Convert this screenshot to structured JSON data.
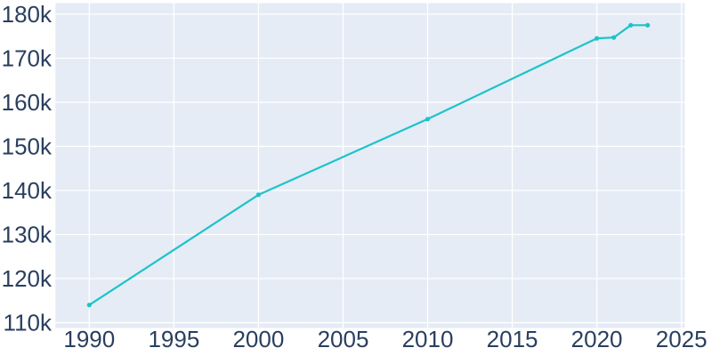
{
  "chart_data": {
    "type": "line",
    "title": "",
    "xlabel": "",
    "ylabel": "",
    "x": [
      1990,
      2000,
      2010,
      2020,
      2021,
      2022,
      2023
    ],
    "y": [
      114000,
      139000,
      156200,
      174500,
      174700,
      177500,
      177500
    ],
    "x_ticks": [
      1990,
      1995,
      2000,
      2005,
      2010,
      2015,
      2020,
      2025
    ],
    "x_tick_labels": [
      "1990",
      "1995",
      "2000",
      "2005",
      "2010",
      "2015",
      "2020",
      "2025"
    ],
    "y_ticks": [
      110000,
      120000,
      130000,
      140000,
      150000,
      160000,
      170000,
      180000
    ],
    "y_tick_labels": [
      "110k",
      "120k",
      "130k",
      "140k",
      "150k",
      "160k",
      "170k",
      "180k"
    ],
    "xlim": [
      1988.0,
      2025.2
    ],
    "ylim": [
      108800,
      182500
    ],
    "grid": true,
    "legend": false,
    "colors": {
      "line": "#1dc3c9",
      "marker": "#1dc3c9",
      "plot_background": "#e5ecf6",
      "gridline": "#ffffff",
      "tick_text": "#2a3f5f",
      "page_background": "#ffffff"
    }
  }
}
